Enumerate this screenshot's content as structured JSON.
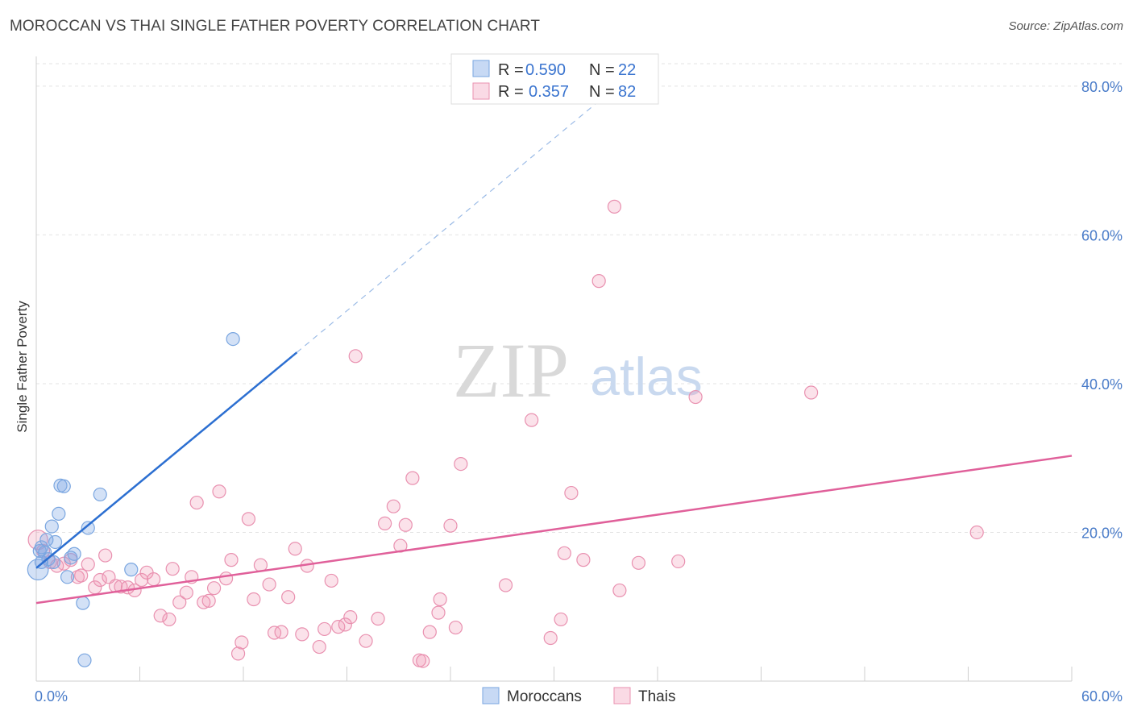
{
  "title": "MOROCCAN VS THAI SINGLE FATHER POVERTY CORRELATION CHART",
  "source": "Source: ZipAtlas.com",
  "watermark": {
    "zip": "ZIP",
    "atlas": "atlas"
  },
  "colors": {
    "moroccans_fill": "rgba(130,170,230,0.35)",
    "moroccans_stroke": "#7aa6e0",
    "moroccans_line": "#2c6fd1",
    "thais_fill": "rgba(240,150,180,0.28)",
    "thais_stroke": "#e991b0",
    "thais_line": "#e0609a",
    "tick": "#4a7cc9",
    "grid": "#e3e3e3"
  },
  "legend": {
    "rows": [
      {
        "r_label": "R =",
        "r_value": "0.590",
        "n_label": "N =",
        "n_value": "22"
      },
      {
        "r_label": "R =",
        "r_value": "0.357",
        "n_label": "N =",
        "n_value": "82"
      }
    ]
  },
  "chart_data": {
    "type": "scatter",
    "title": "MOROCCAN VS THAI SINGLE FATHER POVERTY CORRELATION CHART",
    "xlabel": "",
    "ylabel": "Single Father Poverty",
    "xlim": [
      0,
      60
    ],
    "ylim": [
      0,
      84
    ],
    "x_tick_labels": [
      "0.0%",
      "60.0%"
    ],
    "y_ticks": [
      20,
      40,
      60,
      80
    ],
    "y_tick_labels": [
      "20.0%",
      "40.0%",
      "60.0%",
      "80.0%"
    ],
    "series": [
      {
        "name": "Moroccans",
        "r": 0.59,
        "n": 22,
        "trend": {
          "x0": 0,
          "y0": 15.2,
          "x1": 15.1,
          "y1": 44.2,
          "dash_to_x": 32.5,
          "dash_to_y": 77.8
        },
        "points": [
          [
            0.1,
            15.0,
            1.6
          ],
          [
            0.2,
            17.5,
            1.0
          ],
          [
            0.3,
            18.0,
            1.0
          ],
          [
            0.5,
            17.3,
            1.0
          ],
          [
            0.7,
            16.4,
            1.0
          ],
          [
            0.9,
            20.8,
            1.0
          ],
          [
            1.0,
            16.0,
            1.0
          ],
          [
            1.1,
            18.7,
            1.0
          ],
          [
            1.3,
            22.5,
            1.0
          ],
          [
            1.4,
            26.3,
            1.0
          ],
          [
            1.6,
            26.2,
            1.0
          ],
          [
            1.8,
            14.0,
            1.0
          ],
          [
            2.0,
            16.6,
            1.0
          ],
          [
            2.2,
            17.1,
            1.0
          ],
          [
            2.7,
            10.5,
            1.0
          ],
          [
            2.8,
            2.8,
            1.0
          ],
          [
            3.0,
            20.6,
            1.0
          ],
          [
            3.7,
            25.1,
            1.0
          ],
          [
            5.5,
            15.0,
            1.0
          ],
          [
            11.4,
            46.0,
            1.0
          ],
          [
            0.3,
            16.0,
            1.0
          ],
          [
            0.6,
            19.0,
            1.0
          ]
        ]
      },
      {
        "name": "Thais",
        "r": 0.357,
        "n": 82,
        "trend": {
          "x0": 0,
          "y0": 10.5,
          "x1": 60,
          "y1": 30.3
        },
        "points": [
          [
            0.1,
            19.0,
            1.5
          ],
          [
            0.4,
            17.5,
            1.0
          ],
          [
            0.8,
            16.0,
            1.0
          ],
          [
            1.2,
            15.5,
            1.0
          ],
          [
            1.6,
            15.8,
            1.0
          ],
          [
            2.0,
            16.3,
            1.0
          ],
          [
            2.4,
            14.0,
            1.0
          ],
          [
            2.6,
            14.2,
            1.0
          ],
          [
            3.0,
            15.7,
            1.0
          ],
          [
            3.4,
            12.6,
            1.0
          ],
          [
            3.7,
            13.6,
            1.0
          ],
          [
            4.0,
            16.9,
            1.0
          ],
          [
            4.6,
            12.8,
            1.0
          ],
          [
            4.9,
            12.7,
            1.0
          ],
          [
            5.3,
            12.6,
            1.0
          ],
          [
            5.7,
            12.2,
            1.0
          ],
          [
            6.1,
            13.6,
            1.0
          ],
          [
            6.4,
            14.6,
            1.0
          ],
          [
            6.8,
            13.7,
            1.0
          ],
          [
            7.2,
            8.8,
            1.0
          ],
          [
            7.7,
            8.3,
            1.0
          ],
          [
            7.9,
            15.1,
            1.0
          ],
          [
            8.3,
            10.6,
            1.0
          ],
          [
            8.7,
            11.9,
            1.0
          ],
          [
            9.0,
            14.0,
            1.0
          ],
          [
            9.3,
            24.0,
            1.0
          ],
          [
            9.7,
            10.6,
            1.0
          ],
          [
            10.0,
            10.8,
            1.0
          ],
          [
            10.3,
            12.5,
            1.0
          ],
          [
            10.6,
            25.5,
            1.0
          ],
          [
            11.0,
            13.8,
            1.0
          ],
          [
            11.3,
            16.3,
            1.0
          ],
          [
            11.7,
            3.7,
            1.0
          ],
          [
            11.9,
            5.2,
            1.0
          ],
          [
            12.3,
            21.8,
            1.0
          ],
          [
            12.6,
            11.0,
            1.0
          ],
          [
            13.0,
            15.6,
            1.0
          ],
          [
            13.5,
            13.0,
            1.0
          ],
          [
            13.8,
            6.5,
            1.0
          ],
          [
            14.2,
            6.6,
            1.0
          ],
          [
            14.6,
            11.3,
            1.0
          ],
          [
            15.0,
            17.8,
            1.0
          ],
          [
            15.4,
            6.3,
            1.0
          ],
          [
            15.7,
            15.5,
            1.0
          ],
          [
            16.4,
            4.6,
            1.0
          ],
          [
            16.7,
            7.0,
            1.0
          ],
          [
            17.1,
            13.5,
            1.0
          ],
          [
            17.5,
            7.3,
            1.0
          ],
          [
            17.9,
            7.6,
            1.0
          ],
          [
            18.2,
            8.6,
            1.0
          ],
          [
            18.5,
            43.7,
            1.0
          ],
          [
            19.1,
            5.4,
            1.0
          ],
          [
            19.8,
            8.4,
            1.0
          ],
          [
            20.2,
            21.2,
            1.0
          ],
          [
            20.7,
            23.5,
            1.0
          ],
          [
            21.1,
            18.2,
            1.0
          ],
          [
            21.4,
            21.0,
            1.0
          ],
          [
            21.8,
            27.3,
            1.0
          ],
          [
            22.2,
            2.8,
            1.0
          ],
          [
            22.8,
            6.6,
            1.0
          ],
          [
            23.3,
            9.2,
            1.0
          ],
          [
            23.4,
            11.0,
            1.0
          ],
          [
            24.0,
            20.9,
            1.0
          ],
          [
            24.3,
            7.2,
            1.0
          ],
          [
            24.6,
            29.2,
            1.0
          ],
          [
            27.2,
            12.9,
            1.0
          ],
          [
            28.7,
            35.1,
            1.0
          ],
          [
            29.8,
            5.8,
            1.0
          ],
          [
            30.4,
            8.3,
            1.0
          ],
          [
            30.6,
            17.2,
            1.0
          ],
          [
            31.0,
            25.3,
            1.0
          ],
          [
            31.7,
            16.3,
            1.0
          ],
          [
            32.6,
            53.8,
            1.0
          ],
          [
            33.5,
            63.8,
            1.0
          ],
          [
            33.8,
            12.2,
            1.0
          ],
          [
            34.9,
            15.9,
            1.0
          ],
          [
            37.2,
            16.1,
            1.0
          ],
          [
            38.2,
            38.2,
            1.0
          ],
          [
            44.9,
            38.8,
            1.0
          ],
          [
            54.5,
            20.0,
            1.0
          ],
          [
            22.4,
            2.7,
            1.0
          ],
          [
            4.2,
            14.0,
            1.0
          ]
        ]
      }
    ]
  },
  "bottom_legend": [
    "Moroccans",
    "Thais"
  ]
}
